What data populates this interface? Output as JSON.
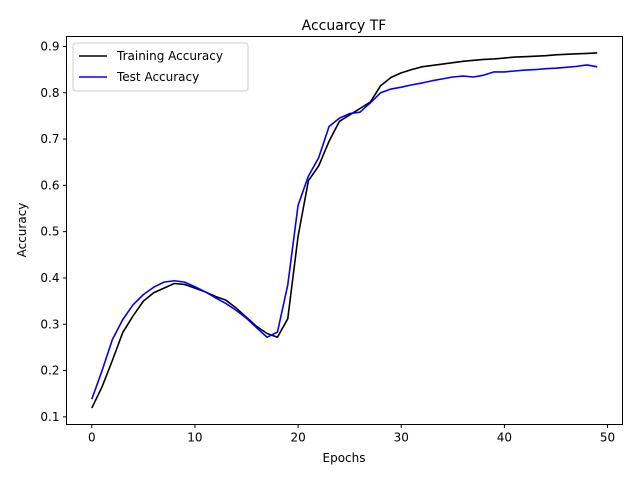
{
  "chart_data": {
    "type": "line",
    "title": "Accuarcy TF",
    "xlabel": "Epochs",
    "ylabel": "Accuracy",
    "xlim": [
      -2.45,
      51.45
    ],
    "ylim": [
      0.0835,
      0.9215
    ],
    "xticks": [
      0,
      10,
      20,
      30,
      40,
      50
    ],
    "yticks": [
      0.1,
      0.2,
      0.3,
      0.4,
      0.5,
      0.6,
      0.7,
      0.8,
      0.9
    ],
    "grid": false,
    "legend_position": "top-left",
    "x": [
      0,
      1,
      2,
      3,
      4,
      5,
      6,
      7,
      8,
      9,
      10,
      11,
      12,
      13,
      14,
      15,
      16,
      17,
      18,
      19,
      20,
      21,
      22,
      23,
      24,
      25,
      26,
      27,
      28,
      29,
      30,
      31,
      32,
      33,
      34,
      35,
      36,
      37,
      38,
      39,
      40,
      41,
      42,
      43,
      44,
      45,
      46,
      47,
      48,
      49
    ],
    "series": [
      {
        "name": "Training Accuracy",
        "color": "#000000",
        "values": [
          0.119,
          0.165,
          0.222,
          0.282,
          0.318,
          0.35,
          0.368,
          0.378,
          0.388,
          0.386,
          0.378,
          0.37,
          0.36,
          0.352,
          0.335,
          0.315,
          0.295,
          0.28,
          0.272,
          0.312,
          0.49,
          0.61,
          0.642,
          0.695,
          0.738,
          0.752,
          0.766,
          0.78,
          0.815,
          0.833,
          0.843,
          0.85,
          0.856,
          0.859,
          0.862,
          0.865,
          0.868,
          0.87,
          0.872,
          0.873,
          0.875,
          0.877,
          0.878,
          0.879,
          0.88,
          0.882,
          0.883,
          0.884,
          0.885,
          0.886
        ]
      },
      {
        "name": "Test Accuracy",
        "color": "#0000ff",
        "values": [
          0.138,
          0.2,
          0.267,
          0.31,
          0.342,
          0.364,
          0.38,
          0.391,
          0.394,
          0.391,
          0.381,
          0.37,
          0.357,
          0.345,
          0.33,
          0.313,
          0.292,
          0.272,
          0.283,
          0.385,
          0.557,
          0.62,
          0.66,
          0.727,
          0.745,
          0.755,
          0.758,
          0.778,
          0.8,
          0.808,
          0.812,
          0.817,
          0.821,
          0.826,
          0.83,
          0.834,
          0.836,
          0.834,
          0.838,
          0.845,
          0.845,
          0.847,
          0.849,
          0.85,
          0.852,
          0.853,
          0.855,
          0.857,
          0.86,
          0.856
        ]
      }
    ]
  }
}
